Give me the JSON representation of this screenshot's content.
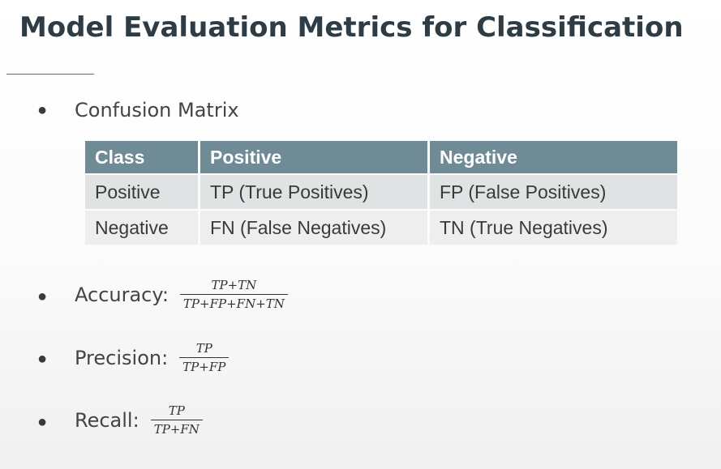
{
  "slide": {
    "title": "Model Evaluation Metrics for Classification",
    "bullets": {
      "confusion": "Confusion Matrix",
      "accuracy_label": "Accuracy:",
      "precision_label": "Precision:",
      "recall_label": "Recall:"
    },
    "table": {
      "headers": [
        "Class",
        "Positive",
        "Negative"
      ],
      "rows": [
        [
          "Positive",
          "TP (True Positives)",
          "FP (False Positives)"
        ],
        [
          "Negative",
          "FN (False Negatives)",
          "TN (True Negatives)"
        ]
      ]
    },
    "formulas": {
      "accuracy": {
        "numerator": "TP+TN",
        "denominator": "TP+FP+FN+TN"
      },
      "precision": {
        "numerator": "TP",
        "denominator": "TP+FP"
      },
      "recall": {
        "numerator": "TP",
        "denominator": "TP+FN"
      }
    },
    "bullet_glyph": "●",
    "colors": {
      "title": "#2e3c46",
      "table_header": "#6e8b96"
    }
  }
}
